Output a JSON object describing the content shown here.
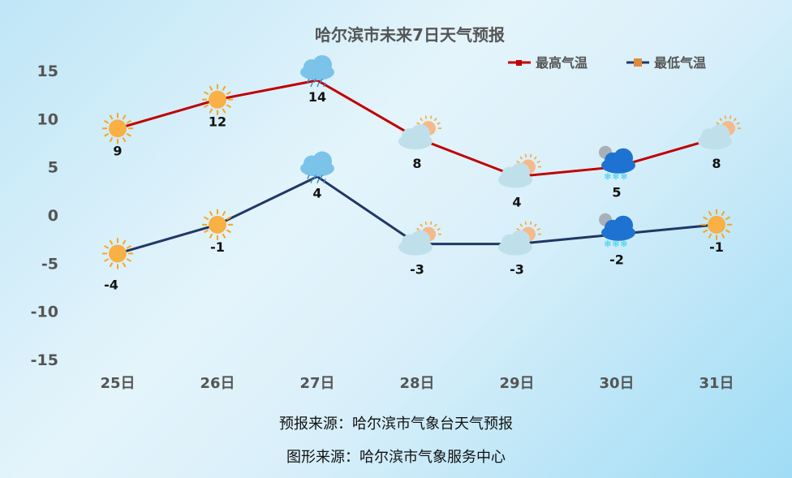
{
  "chart_data": {
    "type": "line",
    "title": "哈尔滨市未来7日天气预报",
    "categories": [
      "25日",
      "26日",
      "27日",
      "28日",
      "29日",
      "30日",
      "31日"
    ],
    "ylim": [
      -15,
      15
    ],
    "yticks": [
      15,
      10,
      5,
      0,
      -5,
      -10,
      -15
    ],
    "grid": false,
    "legend_position": "top-right",
    "series": [
      {
        "name": "最高气温",
        "color": "#c00000",
        "values": [
          9,
          12,
          14,
          8,
          4,
          5,
          8
        ],
        "icons": [
          "sun-icon",
          "sun-icon",
          "rain-icon",
          "partly-cloudy-icon",
          "partly-cloudy-icon",
          "snow-icon",
          "partly-cloudy-icon"
        ]
      },
      {
        "name": "最低气温",
        "color": "#1f3864",
        "marker_color": "#e08a3c",
        "values": [
          -4,
          -1,
          4,
          -3,
          -3,
          -2,
          -1
        ],
        "icons": [
          "sun-icon",
          "sun-icon",
          "rain-icon",
          "partly-cloudy-icon",
          "partly-cloudy-icon",
          "snow-icon",
          "sun-icon"
        ]
      }
    ]
  },
  "footer": {
    "source1": "预报来源：哈尔滨市气象台天气预报",
    "source2": "图形来源：哈尔滨市气象服务中心"
  }
}
